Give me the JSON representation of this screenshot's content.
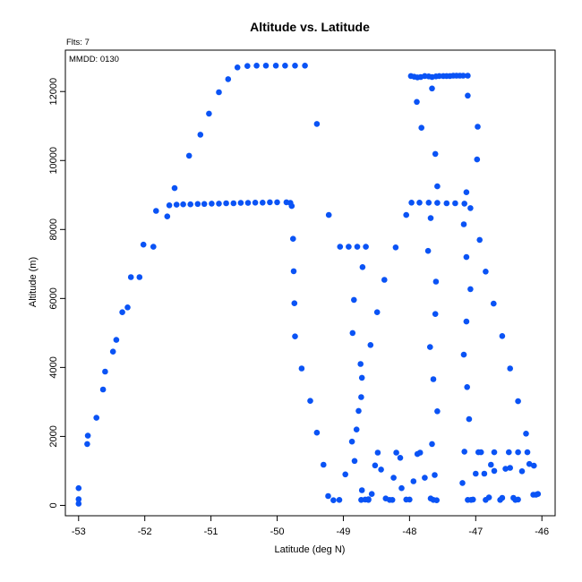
{
  "chart_data": {
    "type": "scatter",
    "title": "Altitude vs. Latitude",
    "subtitle": "Flts: 7",
    "annotation": "MMDD: 0130",
    "xlabel": "Latitude (deg N)",
    "ylabel": "Altitude (m)",
    "xlim": [
      -53.2,
      -45.8
    ],
    "ylim": [
      -300,
      13200
    ],
    "xticks": [
      -53,
      -52,
      -51,
      -50,
      -49,
      -48,
      -47,
      -46
    ],
    "xtick_labels": [
      "-53",
      "-52",
      "-51",
      "-50",
      "-49",
      "-48",
      "-47",
      "-46"
    ],
    "yticks": [
      0,
      2000,
      4000,
      6000,
      8000,
      10000,
      12000
    ],
    "ytick_labels": [
      "0",
      "2000",
      "4000",
      "6000",
      "8000",
      "10000",
      "12000"
    ],
    "grid": false,
    "point_color": "#0a53f5",
    "points": [
      [
        -53.0,
        50
      ],
      [
        -53.0,
        180
      ],
      [
        -53.0,
        500
      ],
      [
        -52.87,
        1780
      ],
      [
        -52.86,
        2020
      ],
      [
        -52.73,
        2540
      ],
      [
        -52.63,
        3360
      ],
      [
        -52.6,
        3880
      ],
      [
        -52.48,
        4460
      ],
      [
        -52.43,
        4800
      ],
      [
        -52.34,
        5600
      ],
      [
        -52.26,
        5740
      ],
      [
        -52.21,
        6620
      ],
      [
        -52.08,
        6620
      ],
      [
        -52.02,
        7560
      ],
      [
        -51.87,
        7500
      ],
      [
        -51.83,
        8540
      ],
      [
        -51.66,
        8380
      ],
      [
        -51.63,
        8700
      ],
      [
        -51.52,
        8720
      ],
      [
        -51.42,
        8730
      ],
      [
        -51.31,
        8730
      ],
      [
        -51.2,
        8740
      ],
      [
        -51.1,
        8740
      ],
      [
        -50.99,
        8750
      ],
      [
        -50.88,
        8750
      ],
      [
        -50.77,
        8760
      ],
      [
        -50.66,
        8760
      ],
      [
        -50.55,
        8770
      ],
      [
        -50.44,
        8770
      ],
      [
        -50.33,
        8780
      ],
      [
        -50.22,
        8780
      ],
      [
        -50.11,
        8790
      ],
      [
        -50.0,
        8790
      ],
      [
        -49.86,
        8790
      ],
      [
        -49.8,
        8770
      ],
      [
        -49.78,
        8680
      ],
      [
        -51.55,
        9200
      ],
      [
        -51.33,
        10140
      ],
      [
        -51.16,
        10750
      ],
      [
        -51.03,
        11360
      ],
      [
        -50.88,
        11980
      ],
      [
        -50.74,
        12360
      ],
      [
        -50.6,
        12700
      ],
      [
        -50.45,
        12740
      ],
      [
        -50.31,
        12750
      ],
      [
        -50.17,
        12750
      ],
      [
        -50.02,
        12750
      ],
      [
        -49.88,
        12750
      ],
      [
        -49.73,
        12750
      ],
      [
        -49.58,
        12750
      ],
      [
        -49.4,
        11060
      ],
      [
        -49.22,
        8420
      ],
      [
        -49.05,
        7500
      ],
      [
        -48.92,
        7500
      ],
      [
        -48.79,
        7500
      ],
      [
        -48.66,
        7500
      ],
      [
        -48.21,
        7480
      ],
      [
        -48.05,
        8420
      ],
      [
        -49.76,
        7730
      ],
      [
        -49.75,
        6790
      ],
      [
        -49.74,
        5860
      ],
      [
        -49.73,
        4900
      ],
      [
        -49.63,
        3970
      ],
      [
        -49.5,
        3030
      ],
      [
        -49.4,
        2110
      ],
      [
        -49.3,
        1180
      ],
      [
        -49.23,
        270
      ],
      [
        -49.15,
        150
      ],
      [
        -49.06,
        160
      ],
      [
        -48.97,
        900
      ],
      [
        -48.87,
        1850
      ],
      [
        -48.8,
        2200
      ],
      [
        -48.77,
        2740
      ],
      [
        -48.73,
        3140
      ],
      [
        -48.72,
        3700
      ],
      [
        -48.74,
        4100
      ],
      [
        -48.59,
        4650
      ],
      [
        -48.49,
        5600
      ],
      [
        -48.38,
        6540
      ],
      [
        -48.71,
        6910
      ],
      [
        -48.84,
        5960
      ],
      [
        -48.86,
        5000
      ],
      [
        -48.83,
        1290
      ],
      [
        -48.72,
        440
      ],
      [
        -48.67,
        170
      ],
      [
        -48.62,
        180
      ],
      [
        -48.57,
        330
      ],
      [
        -48.52,
        1160
      ],
      [
        -48.48,
        1530
      ],
      [
        -48.43,
        1040
      ],
      [
        -48.36,
        200
      ],
      [
        -48.3,
        160
      ],
      [
        -48.26,
        160
      ],
      [
        -48.24,
        800
      ],
      [
        -48.2,
        1530
      ],
      [
        -48.14,
        1380
      ],
      [
        -48.12,
        500
      ],
      [
        -48.05,
        170
      ],
      [
        -48.0,
        170
      ],
      [
        -47.94,
        700
      ],
      [
        -47.88,
        1490
      ],
      [
        -47.84,
        1530
      ],
      [
        -47.77,
        800
      ],
      [
        -48.62,
        160
      ],
      [
        -48.73,
        160
      ],
      [
        -47.97,
        8780
      ],
      [
        -47.85,
        8780
      ],
      [
        -47.71,
        8780
      ],
      [
        -47.58,
        8770
      ],
      [
        -47.44,
        8760
      ],
      [
        -47.31,
        8760
      ],
      [
        -47.17,
        8750
      ],
      [
        -47.98,
        12450
      ],
      [
        -47.93,
        12430
      ],
      [
        -47.88,
        12410
      ],
      [
        -47.83,
        12420
      ],
      [
        -47.77,
        12450
      ],
      [
        -47.71,
        12440
      ],
      [
        -47.66,
        12420
      ],
      [
        -47.6,
        12440
      ],
      [
        -47.55,
        12450
      ],
      [
        -47.49,
        12450
      ],
      [
        -47.44,
        12450
      ],
      [
        -47.39,
        12450
      ],
      [
        -47.34,
        12460
      ],
      [
        -47.29,
        12460
      ],
      [
        -47.24,
        12460
      ],
      [
        -47.19,
        12460
      ],
      [
        -47.12,
        12460
      ],
      [
        -47.89,
        11700
      ],
      [
        -47.82,
        10950
      ],
      [
        -47.66,
        12090
      ],
      [
        -47.61,
        10190
      ],
      [
        -47.58,
        9250
      ],
      [
        -47.72,
        7380
      ],
      [
        -47.68,
        8330
      ],
      [
        -47.6,
        6490
      ],
      [
        -47.61,
        5550
      ],
      [
        -47.69,
        4590
      ],
      [
        -47.64,
        3660
      ],
      [
        -47.58,
        2730
      ],
      [
        -47.66,
        1780
      ],
      [
        -47.62,
        880
      ],
      [
        -47.68,
        200
      ],
      [
        -47.64,
        160
      ],
      [
        -47.59,
        150
      ],
      [
        -47.12,
        11880
      ],
      [
        -47.14,
        9080
      ],
      [
        -47.18,
        8150
      ],
      [
        -47.14,
        7200
      ],
      [
        -47.08,
        6270
      ],
      [
        -47.14,
        5330
      ],
      [
        -47.18,
        4370
      ],
      [
        -47.13,
        3430
      ],
      [
        -47.1,
        2500
      ],
      [
        -47.17,
        1560
      ],
      [
        -47.2,
        650
      ],
      [
        -47.12,
        160
      ],
      [
        -47.07,
        160
      ],
      [
        -47.04,
        170
      ],
      [
        -47.08,
        8620
      ],
      [
        -46.97,
        10980
      ],
      [
        -46.98,
        10030
      ],
      [
        -46.94,
        7700
      ],
      [
        -46.85,
        6780
      ],
      [
        -46.73,
        5850
      ],
      [
        -46.6,
        4910
      ],
      [
        -46.48,
        3970
      ],
      [
        -46.36,
        3020
      ],
      [
        -46.24,
        2080
      ],
      [
        -46.22,
        1540
      ],
      [
        -46.19,
        1200
      ],
      [
        -46.12,
        1150
      ],
      [
        -47.0,
        920
      ],
      [
        -46.96,
        1540
      ],
      [
        -46.92,
        1540
      ],
      [
        -46.87,
        920
      ],
      [
        -46.8,
        230
      ],
      [
        -46.85,
        160
      ],
      [
        -46.77,
        1180
      ],
      [
        -46.72,
        1000
      ],
      [
        -46.72,
        1540
      ],
      [
        -46.63,
        160
      ],
      [
        -46.6,
        220
      ],
      [
        -46.55,
        1060
      ],
      [
        -46.5,
        1540
      ],
      [
        -46.48,
        1090
      ],
      [
        -46.43,
        220
      ],
      [
        -46.4,
        160
      ],
      [
        -46.36,
        1540
      ],
      [
        -46.3,
        990
      ],
      [
        -46.36,
        170
      ],
      [
        -46.13,
        310
      ],
      [
        -46.09,
        310
      ],
      [
        -46.06,
        330
      ]
    ]
  }
}
